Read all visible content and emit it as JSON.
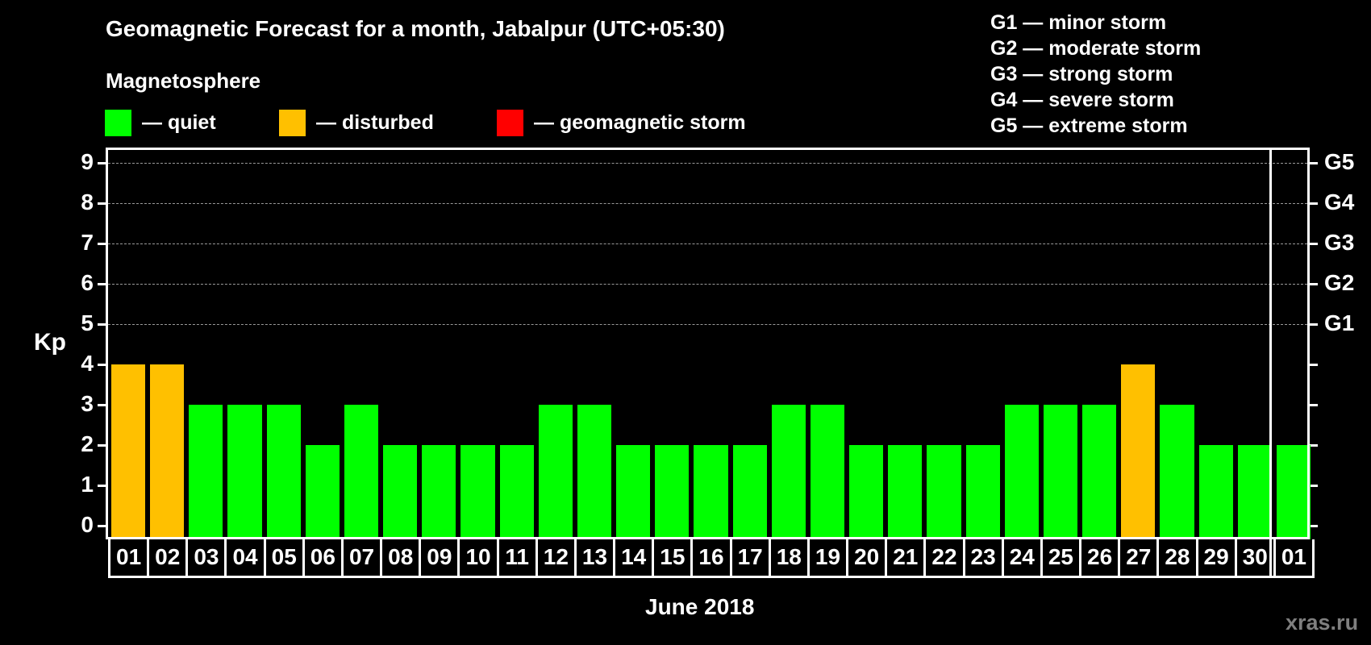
{
  "header": {
    "title": "Geomagnetic Forecast for a month, Jabalpur (UTC+05:30)",
    "subtitle": "Magnetosphere"
  },
  "legend": {
    "items": [
      {
        "label": "— quiet",
        "color": "#00ff00"
      },
      {
        "label": "— disturbed",
        "color": "#ffc000"
      },
      {
        "label": "— geomagnetic storm",
        "color": "#ff0000"
      }
    ]
  },
  "g_scale_legend": [
    "G1 — minor storm",
    "G2 — moderate storm",
    "G3 — strong storm",
    "G4 — severe storm",
    "G5 — extreme storm"
  ],
  "axis": {
    "ylabel": "Kp",
    "xlabel": "June 2018",
    "yticks": [
      "0",
      "1",
      "2",
      "3",
      "4",
      "5",
      "6",
      "7",
      "8",
      "9"
    ],
    "g_ticks": [
      {
        "kp": 5,
        "label": "G1"
      },
      {
        "kp": 6,
        "label": "G2"
      },
      {
        "kp": 7,
        "label": "G3"
      },
      {
        "kp": 8,
        "label": "G4"
      },
      {
        "kp": 9,
        "label": "G5"
      }
    ]
  },
  "watermark": "xras.ru",
  "colors": {
    "quiet": "#00ff00",
    "disturbed": "#ffc000",
    "storm": "#ff0000",
    "background": "#000000",
    "grid": "#9a9a9a"
  },
  "chart_data": {
    "type": "bar",
    "title": "Geomagnetic Forecast for a month, Jabalpur (UTC+05:30)",
    "subtitle": "Magnetosphere",
    "xlabel": "June 2018",
    "ylabel": "Kp",
    "ylim": [
      0,
      9
    ],
    "grid": "horizontal dashed at Kp 5-9",
    "legend_position": "top",
    "categories": [
      "01",
      "02",
      "03",
      "04",
      "05",
      "06",
      "07",
      "08",
      "09",
      "10",
      "11",
      "12",
      "13",
      "14",
      "15",
      "16",
      "17",
      "18",
      "19",
      "20",
      "21",
      "22",
      "23",
      "24",
      "25",
      "26",
      "27",
      "28",
      "29",
      "30",
      "01"
    ],
    "values": [
      4,
      4,
      3,
      3,
      3,
      2,
      3,
      2,
      2,
      2,
      2,
      3,
      3,
      2,
      2,
      2,
      2,
      3,
      3,
      2,
      2,
      2,
      2,
      3,
      3,
      3,
      4,
      3,
      2,
      2,
      2
    ],
    "status": [
      "disturbed",
      "disturbed",
      "quiet",
      "quiet",
      "quiet",
      "quiet",
      "quiet",
      "quiet",
      "quiet",
      "quiet",
      "quiet",
      "quiet",
      "quiet",
      "quiet",
      "quiet",
      "quiet",
      "quiet",
      "quiet",
      "quiet",
      "quiet",
      "quiet",
      "quiet",
      "quiet",
      "quiet",
      "quiet",
      "quiet",
      "disturbed",
      "quiet",
      "quiet",
      "quiet",
      "quiet"
    ],
    "secondary_y_labels": {
      "5": "G1",
      "6": "G2",
      "7": "G3",
      "8": "G4",
      "9": "G5"
    }
  }
}
